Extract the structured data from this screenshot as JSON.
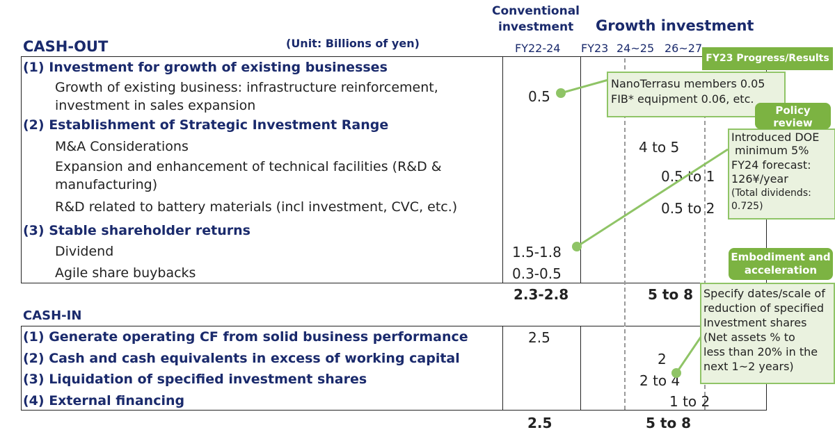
{
  "header": {
    "cash_out_title": "CASH-OUT",
    "unit_label": "(Unit: Billions of yen)",
    "conventional_line1": "Conventional",
    "conventional_line2": "investment",
    "growth_title": "Growth investment",
    "period_fy22_24": "FY22-24",
    "period_fy23": "FY23",
    "period_24_25": "24~25",
    "period_26_27": "26~27"
  },
  "cash_out": {
    "sec1": {
      "title": "(1) Investment for growth of existing businesses",
      "item1_line1": "Growth of existing business: infrastructure reinforcement,",
      "item1_line2": "investment in sales expansion",
      "item1_value": "0.5"
    },
    "sec2": {
      "title": "(2) Establishment of Strategic Investment Range",
      "ma_label": "M&A Considerations",
      "ma_value": "4 to 5",
      "tech_line1": "Expansion and enhancement of technical facilities (R&D &",
      "tech_line2": "manufacturing)",
      "tech_value": "0.5 to 1",
      "rd_label": "R&D related to battery materials (incl investment, CVC, etc.)",
      "rd_value": "0.5 to 2"
    },
    "sec3": {
      "title": "(3) Stable shareholder returns",
      "dividend_label": "Dividend",
      "dividend_value": "1.5-1.8",
      "buyback_label": "Agile share buybacks",
      "buyback_value": "0.3-0.5"
    },
    "total_conventional": "2.3-2.8",
    "total_growth": "5 to 8"
  },
  "cash_in": {
    "title": "CASH-IN",
    "row1_label": "(1) Generate operating CF from solid business performance",
    "row1_value": "2.5",
    "row2_label": "(2) Cash and cash equivalents in excess of working capital",
    "row2_value": "2",
    "row3_label": "(3) Liquidation of specified investment shares",
    "row3_value": "2 to 4",
    "row4_label": "(4) External financing",
    "row4_value": "1 to 2",
    "total_conventional": "2.5",
    "total_growth": "5 to 8"
  },
  "callouts": {
    "progress_tag": "FY23 Progress/Results",
    "progress_line1": "NanoTerrasu members 0.05",
    "progress_line2": "FIB* equipment 0.06, etc.",
    "policy_tag_line1": "Policy",
    "policy_tag_line2": "review",
    "policy_line1": "Introduced DOE",
    "policy_line2": "minimum 5%",
    "policy_line3": "FY24 forecast:",
    "policy_line4": "126¥/year",
    "policy_line5": "(Total dividends:",
    "policy_line6": "0.725)",
    "embody_tag_line1": "Embodiment and",
    "embody_tag_line2": "acceleration",
    "embody_line1": "Specify dates/scale of",
    "embody_line2": "reduction of specified",
    "embody_line3": "Investment shares",
    "embody_line4": "(Net assets % to",
    "embody_line5": "less than 20% in the",
    "embody_line6": "next 1~2 years)"
  },
  "colors": {
    "navy": "#1a2a6c",
    "green_tag": "#7cb342",
    "green_border": "#8fc466",
    "green_fill": "#eaf2df"
  }
}
